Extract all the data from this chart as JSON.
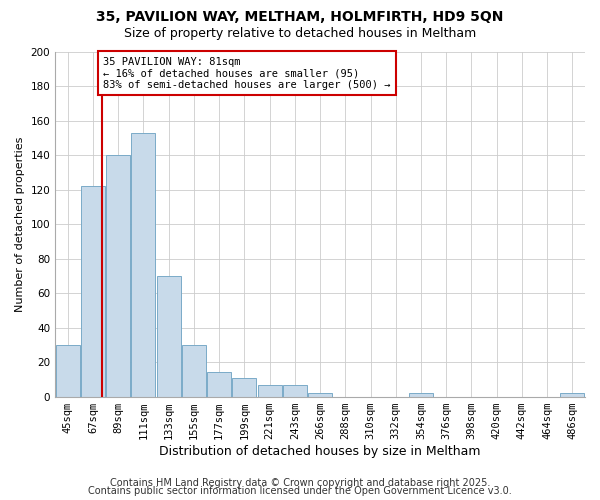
{
  "title": "35, PAVILION WAY, MELTHAM, HOLMFIRTH, HD9 5QN",
  "subtitle": "Size of property relative to detached houses in Meltham",
  "xlabel": "Distribution of detached houses by size in Meltham",
  "ylabel": "Number of detached properties",
  "categories": [
    "45sqm",
    "67sqm",
    "89sqm",
    "111sqm",
    "133sqm",
    "155sqm",
    "177sqm",
    "199sqm",
    "221sqm",
    "243sqm",
    "266sqm",
    "288sqm",
    "310sqm",
    "332sqm",
    "354sqm",
    "376sqm",
    "398sqm",
    "420sqm",
    "442sqm",
    "464sqm",
    "486sqm"
  ],
  "values": [
    30,
    122,
    140,
    153,
    70,
    30,
    14,
    11,
    7,
    7,
    2,
    0,
    0,
    0,
    2,
    0,
    0,
    0,
    0,
    0,
    2
  ],
  "bar_color": "#c8daea",
  "bar_edge_color": "#7aaac8",
  "vline_x_index": 1.35,
  "vline_color": "#cc0000",
  "annotation_lines": [
    "35 PAVILION WAY: 81sqm",
    "← 16% of detached houses are smaller (95)",
    "83% of semi-detached houses are larger (500) →"
  ],
  "annotation_box_facecolor": "#ffffff",
  "annotation_box_edgecolor": "#cc0000",
  "ylim": [
    0,
    200
  ],
  "yticks": [
    0,
    20,
    40,
    60,
    80,
    100,
    120,
    140,
    160,
    180,
    200
  ],
  "footer_line1": "Contains HM Land Registry data © Crown copyright and database right 2025.",
  "footer_line2": "Contains public sector information licensed under the Open Government Licence v3.0.",
  "background_color": "#ffffff",
  "grid_color": "#cccccc",
  "title_fontsize": 10,
  "subtitle_fontsize": 9,
  "xlabel_fontsize": 9,
  "ylabel_fontsize": 8,
  "tick_fontsize": 7.5,
  "annotation_fontsize": 7.5,
  "footer_fontsize": 7
}
